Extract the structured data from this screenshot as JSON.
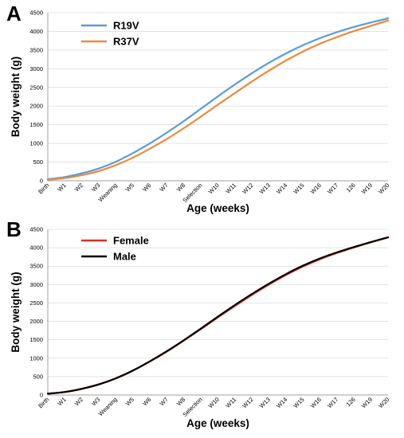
{
  "chart_data": [
    {
      "type": "line",
      "panel_label": "A",
      "xlabel": "Age (weeks)",
      "ylabel": "Body weight (g)",
      "ylim": [
        0,
        4500
      ],
      "yticks": [
        0,
        500,
        1000,
        1500,
        2000,
        2500,
        3000,
        3500,
        4000,
        4500
      ],
      "grid": true,
      "legend": "top-left",
      "categories": [
        "Birth",
        "W1",
        "W2",
        "W3",
        "Weaning",
        "W5",
        "W6",
        "W7",
        "W8",
        "Selection",
        "W10",
        "W11",
        "W12",
        "W13",
        "W14",
        "W15",
        "W16",
        "W17",
        "126",
        "W19",
        "W20"
      ],
      "series": [
        {
          "name": "R19V",
          "color": "#5b9bd5",
          "values": [
            40,
            100,
            200,
            330,
            510,
            740,
            1000,
            1290,
            1600,
            1930,
            2260,
            2580,
            2880,
            3160,
            3410,
            3630,
            3820,
            3980,
            4120,
            4240,
            4350
          ]
        },
        {
          "name": "R37V",
          "color": "#f0883c",
          "values": [
            25,
            70,
            150,
            260,
            420,
            620,
            860,
            1120,
            1410,
            1720,
            2040,
            2350,
            2660,
            2950,
            3220,
            3460,
            3670,
            3850,
            4010,
            4150,
            4290
          ]
        }
      ]
    },
    {
      "type": "line",
      "panel_label": "B",
      "xlabel": "Age (weeks)",
      "ylabel": "Body weight (g)",
      "ylim": [
        0,
        4500
      ],
      "yticks": [
        0,
        500,
        1000,
        1500,
        2000,
        2500,
        3000,
        3500,
        4000,
        4500
      ],
      "grid": true,
      "legend": "top-left",
      "categories": [
        "Birth",
        "W1",
        "W2",
        "W3",
        "Weaning",
        "W5",
        "W6",
        "W7",
        "W8",
        "Selection",
        "W10",
        "W11",
        "W12",
        "W13",
        "W14",
        "W15",
        "W16",
        "W17",
        "126",
        "W19",
        "W20"
      ],
      "series": [
        {
          "name": "Female",
          "color": "#e03020",
          "values": [
            35,
            80,
            165,
            285,
            450,
            660,
            910,
            1180,
            1480,
            1790,
            2110,
            2420,
            2720,
            3000,
            3260,
            3490,
            3690,
            3860,
            4010,
            4150,
            4280
          ]
        },
        {
          "name": "Male",
          "color": "#000000",
          "values": [
            35,
            82,
            170,
            290,
            455,
            665,
            915,
            1190,
            1490,
            1805,
            2130,
            2445,
            2745,
            3025,
            3285,
            3515,
            3710,
            3875,
            4020,
            4155,
            4285
          ]
        }
      ]
    }
  ]
}
